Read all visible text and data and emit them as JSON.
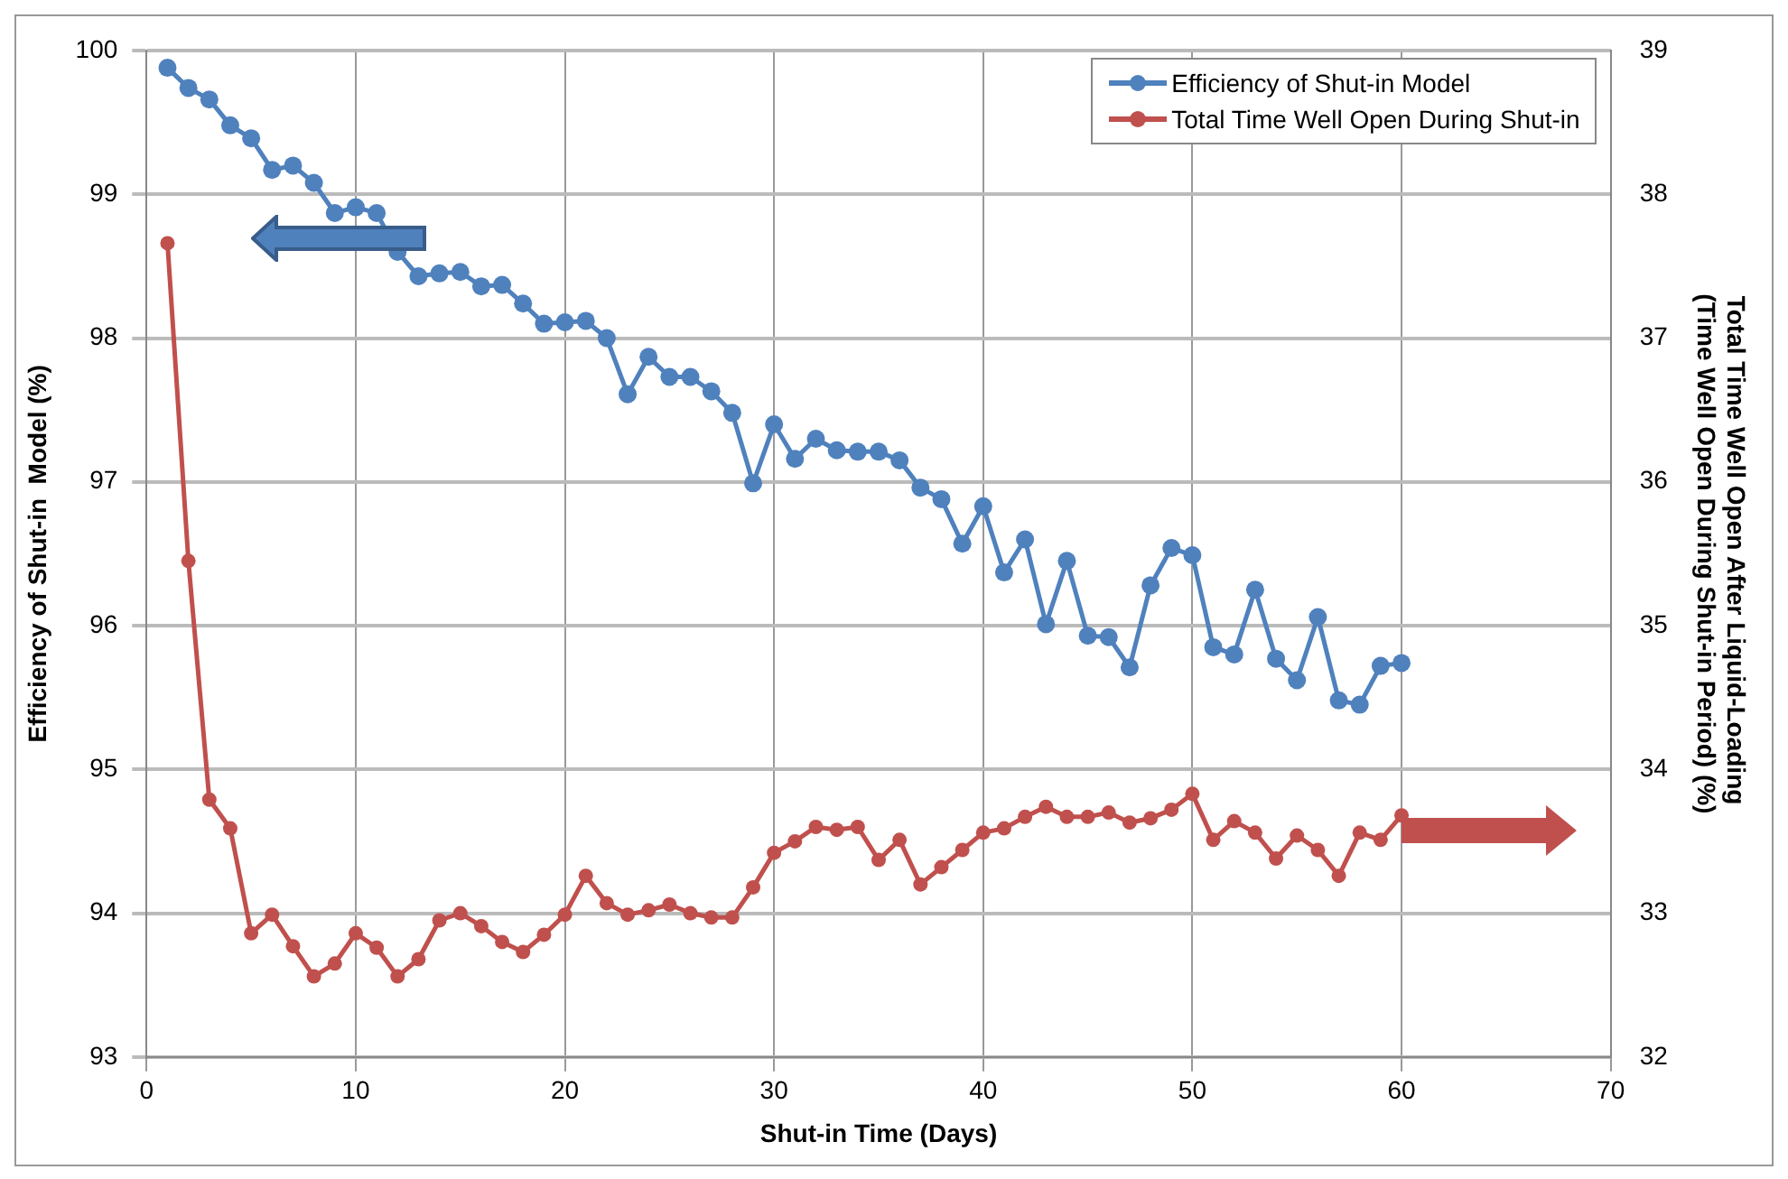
{
  "chart_data": {
    "type": "line",
    "xlabel": "Shut-in Time (Days)",
    "ylabel": "Efficiency of Shut-in  Model (%)",
    "y2label": "Total Time Well Open After Liquid-Loading  (Time Well Open During Shut-in Period) (%)",
    "x": [
      1,
      2,
      3,
      4,
      5,
      6,
      7,
      8,
      9,
      10,
      11,
      12,
      13,
      14,
      15,
      16,
      17,
      18,
      19,
      20,
      21,
      22,
      23,
      24,
      25,
      26,
      27,
      28,
      29,
      30,
      31,
      32,
      33,
      34,
      35,
      36,
      37,
      38,
      39,
      40,
      41,
      42,
      43,
      44,
      45,
      46,
      47,
      48,
      49,
      50,
      51,
      52,
      53,
      54,
      55,
      56,
      57,
      58,
      59,
      60
    ],
    "series": [
      {
        "name": "Efficiency of Shut-in Model",
        "color": "#4f81bd",
        "values": [
          99.88,
          99.74,
          99.66,
          99.48,
          99.39,
          99.17,
          99.2,
          99.08,
          98.87,
          98.91,
          98.87,
          98.6,
          98.43,
          98.45,
          98.46,
          98.36,
          98.37,
          98.24,
          98.1,
          98.11,
          98.12,
          98.0,
          97.61,
          97.87,
          97.73,
          97.73,
          97.63,
          97.48,
          96.99,
          97.4,
          97.16,
          97.3,
          97.22,
          97.21,
          97.21,
          97.15,
          96.96,
          96.88,
          96.57,
          96.83,
          96.37,
          96.6,
          96.01,
          96.45,
          95.93,
          95.92,
          95.71,
          96.28,
          96.54,
          96.49,
          95.85,
          95.8,
          96.25,
          95.77,
          95.62,
          96.06,
          95.48,
          95.45,
          95.72,
          95.74
        ]
      },
      {
        "name": "Total Time Well Open During Shut-in",
        "color": "#c0504d",
        "axis": "y2",
        "values": [
          37.66,
          35.45,
          33.79,
          33.59,
          32.86,
          32.99,
          32.77,
          32.56,
          32.65,
          32.86,
          32.76,
          32.56,
          32.68,
          32.95,
          33.0,
          32.91,
          32.8,
          32.73,
          32.85,
          32.99,
          33.26,
          33.07,
          32.99,
          33.02,
          33.06,
          33.0,
          32.97,
          32.97,
          33.18,
          33.42,
          33.5,
          33.6,
          33.58,
          33.6,
          33.37,
          33.51,
          33.2,
          33.32,
          33.44,
          33.56,
          33.59,
          33.67,
          33.74,
          33.67,
          33.67,
          33.7,
          33.63,
          33.66,
          33.72,
          33.83,
          33.51,
          33.64,
          33.56,
          33.38,
          33.54,
          33.44,
          33.26,
          33.56,
          33.51,
          33.68
        ]
      }
    ],
    "xlim": [
      0,
      70
    ],
    "xticks": [
      0,
      10,
      20,
      30,
      40,
      50,
      60,
      70
    ],
    "ylim": [
      93,
      100
    ],
    "yticks": [
      93,
      94,
      95,
      96,
      97,
      98,
      99,
      100
    ],
    "y2lim": [
      32,
      39
    ],
    "y2ticks": [
      32,
      33,
      34,
      35,
      36,
      37,
      38,
      39
    ],
    "grid": true,
    "legend": "top right",
    "marker": "circle",
    "line_style": "solid"
  }
}
